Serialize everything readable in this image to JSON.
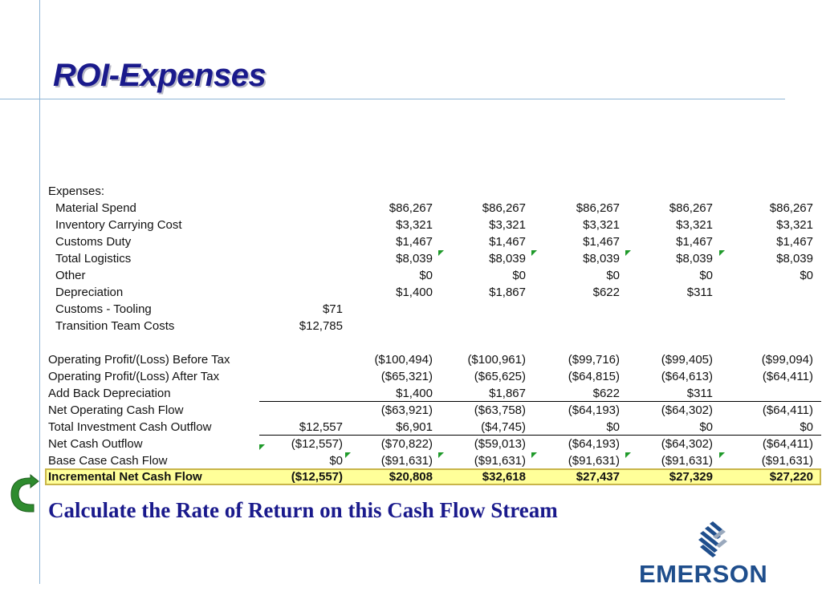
{
  "title": "ROI-Expenses",
  "caption": "Calculate the Rate of Return on this Cash Flow Stream",
  "brand": {
    "name": "EMERSON",
    "color": "#1f4e8c"
  },
  "colors": {
    "title": "#1a1a8c",
    "highlight_fill": "#ffff99",
    "highlight_border": "#c9b54a",
    "marker": "#1f9a2a",
    "arrow": "#2e8b2e"
  },
  "table": {
    "section_label": "Expenses:",
    "rows": [
      {
        "label": "Material Spend",
        "c0": "",
        "c1": "$86,267",
        "c2": "$86,267",
        "c3": "$86,267",
        "c4": "$86,267",
        "c5": "$86,267"
      },
      {
        "label": "Inventory Carrying Cost",
        "c0": "",
        "c1": "$3,321",
        "c2": "$3,321",
        "c3": "$3,321",
        "c4": "$3,321",
        "c5": "$3,321"
      },
      {
        "label": "Customs Duty",
        "c0": "",
        "c1": "$1,467",
        "c2": "$1,467",
        "c3": "$1,467",
        "c4": "$1,467",
        "c5": "$1,467"
      },
      {
        "label": "Total Logistics",
        "c0": "",
        "c1": "$8,039",
        "c2": "$8,039",
        "c3": "$8,039",
        "c4": "$8,039",
        "c5": "$8,039"
      },
      {
        "label": "Other",
        "c0": "",
        "c1": "$0",
        "c2": "$0",
        "c3": "$0",
        "c4": "$0",
        "c5": "$0"
      },
      {
        "label": "Depreciation",
        "c0": "",
        "c1": "$1,400",
        "c2": "$1,867",
        "c3": "$622",
        "c4": "$311",
        "c5": ""
      },
      {
        "label": "Customs - Tooling",
        "c0": "$71",
        "c1": "",
        "c2": "",
        "c3": "",
        "c4": "",
        "c5": ""
      },
      {
        "label": "Transition Team Costs",
        "c0": "$12,785",
        "c1": "",
        "c2": "",
        "c3": "",
        "c4": "",
        "c5": ""
      },
      {
        "label": "Operating Profit/(Loss) Before Tax",
        "c0": "",
        "c1": "($100,494)",
        "c2": "($100,961)",
        "c3": "($99,716)",
        "c4": "($99,405)",
        "c5": "($99,094)"
      },
      {
        "label": "Operating Profit/(Loss) After Tax",
        "c0": "",
        "c1": "($65,321)",
        "c2": "($65,625)",
        "c3": "($64,815)",
        "c4": "($64,613)",
        "c5": "($64,411)"
      },
      {
        "label": "Add Back Depreciation",
        "c0": "",
        "c1": "$1,400",
        "c2": "$1,867",
        "c3": "$622",
        "c4": "$311",
        "c5": ""
      },
      {
        "label": "Net Operating Cash Flow",
        "c0": "",
        "c1": "($63,921)",
        "c2": "($63,758)",
        "c3": "($64,193)",
        "c4": "($64,302)",
        "c5": "($64,411)"
      },
      {
        "label": "Total Investment Cash Outflow",
        "c0": "$12,557",
        "c1": "$6,901",
        "c2": "($4,745)",
        "c3": "$0",
        "c4": "$0",
        "c5": "$0"
      },
      {
        "label": "Net Cash Outflow",
        "c0": "($12,557)",
        "c1": "($70,822)",
        "c2": "($59,013)",
        "c3": "($64,193)",
        "c4": "($64,302)",
        "c5": "($64,411)"
      },
      {
        "label": "Base Case Cash Flow",
        "c0": "$0",
        "c1": "($91,631)",
        "c2": "($91,631)",
        "c3": "($91,631)",
        "c4": "($91,631)",
        "c5": "($91,631)"
      },
      {
        "label": "Incremental Net Cash Flow",
        "c0": "($12,557)",
        "c1": "$20,808",
        "c2": "$32,618",
        "c3": "$27,437",
        "c4": "$27,329",
        "c5": "$27,220"
      }
    ]
  }
}
